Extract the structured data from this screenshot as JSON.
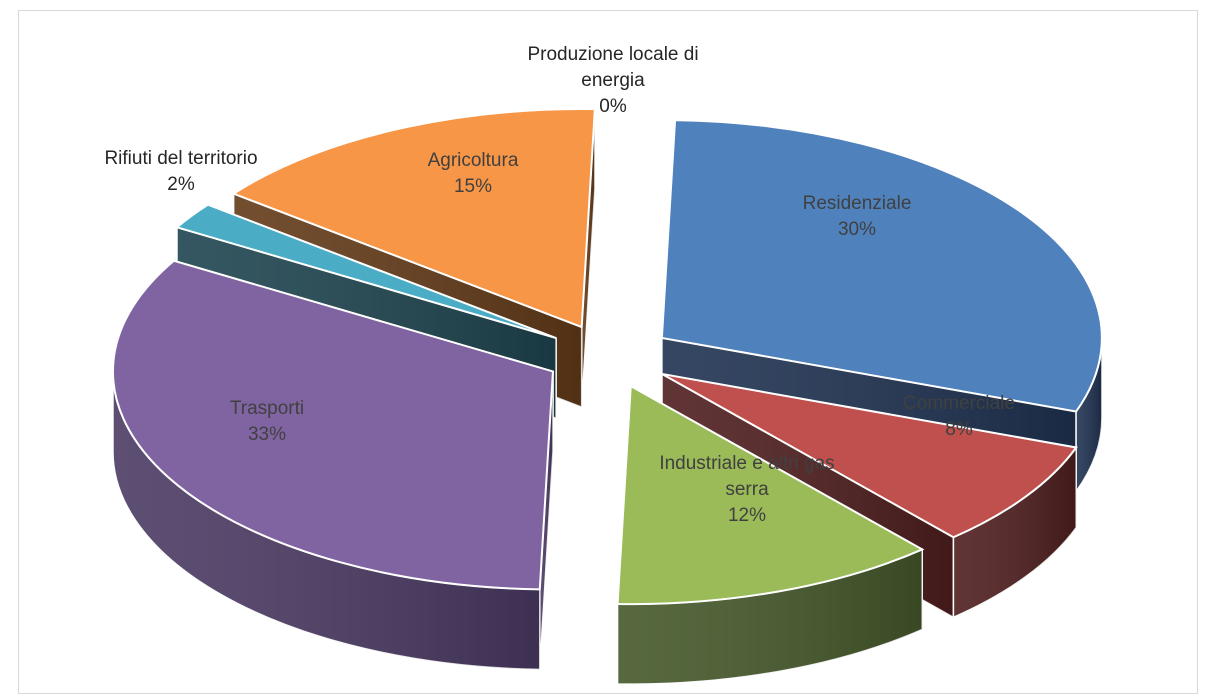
{
  "chart_data": {
    "type": "pie",
    "variant": "3d-exploded",
    "title": "",
    "legend": "none",
    "slices": [
      {
        "label": "Residenziale",
        "display_label": "Residenziale",
        "value": 30,
        "value_text": "30%",
        "top_color": "#4F81BD",
        "side_color": "#1F3251"
      },
      {
        "label": "Commerciale",
        "display_label": "Commerciale",
        "value": 8,
        "value_text": "8%",
        "top_color": "#C0504D",
        "side_color": "#4F1E1E"
      },
      {
        "label": "Industriale e altri gas serra",
        "display_label": "Industriale e altri gas\nserra",
        "value": 12,
        "value_text": "12%",
        "top_color": "#9BBB59",
        "side_color": "#45582A"
      },
      {
        "label": "Trasporti",
        "display_label": "Trasporti",
        "value": 33,
        "value_text": "33%",
        "top_color": "#8064A2",
        "side_color": "#4B3A63"
      },
      {
        "label": "Rifiuti del territorio",
        "display_label": "Rifiuti del territorio",
        "value": 2,
        "value_text": "2%",
        "top_color": "#4BACC6",
        "side_color": "#1E444F"
      },
      {
        "label": "Agricoltura",
        "display_label": "Agricoltura",
        "value": 15,
        "value_text": "15%",
        "top_color": "#F79646",
        "side_color": "#633A18"
      },
      {
        "label": "Produzione locale di energia",
        "display_label": "Produzione locale di\nenergia",
        "value": 0,
        "value_text": "0%",
        "top_color": "#2C4D75",
        "side_color": "#1A2E46"
      }
    ]
  }
}
